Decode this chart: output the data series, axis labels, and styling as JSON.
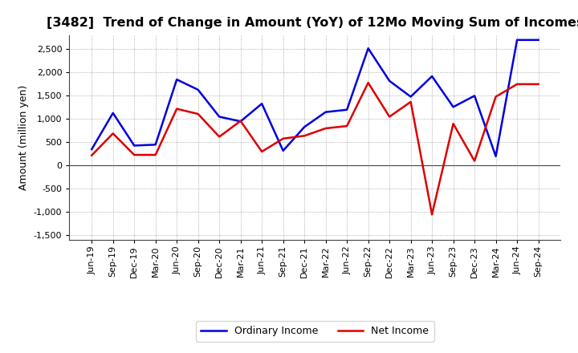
{
  "title": "[3482]  Trend of Change in Amount (YoY) of 12Mo Moving Sum of Incomes",
  "ylabel": "Amount (million yen)",
  "x_labels": [
    "Jun-19",
    "Sep-19",
    "Dec-19",
    "Mar-20",
    "Jun-20",
    "Sep-20",
    "Dec-20",
    "Mar-21",
    "Jun-21",
    "Sep-21",
    "Dec-21",
    "Mar-22",
    "Jun-22",
    "Sep-22",
    "Dec-22",
    "Mar-23",
    "Jun-23",
    "Sep-23",
    "Dec-23",
    "Mar-24",
    "Jun-24",
    "Sep-24"
  ],
  "ordinary_income": [
    350,
    1130,
    430,
    450,
    1850,
    1630,
    1050,
    950,
    1330,
    320,
    830,
    1150,
    1200,
    2520,
    1820,
    1480,
    1920,
    1260,
    1500,
    200,
    2700,
    2700
  ],
  "net_income": [
    220,
    690,
    230,
    230,
    1220,
    1110,
    620,
    960,
    300,
    580,
    640,
    800,
    850,
    1780,
    1050,
    1370,
    -1050,
    900,
    100,
    1480,
    1750,
    1750
  ],
  "ylim": [
    -1600,
    2800
  ],
  "yticks": [
    -1500,
    -1000,
    -500,
    0,
    500,
    1000,
    1500,
    2000,
    2500
  ],
  "ordinary_color": "#0000dd",
  "net_color": "#dd0000",
  "bg_color": "#ffffff",
  "grid_color": "#999999",
  "title_fontsize": 11.5,
  "label_fontsize": 9,
  "tick_fontsize": 8
}
